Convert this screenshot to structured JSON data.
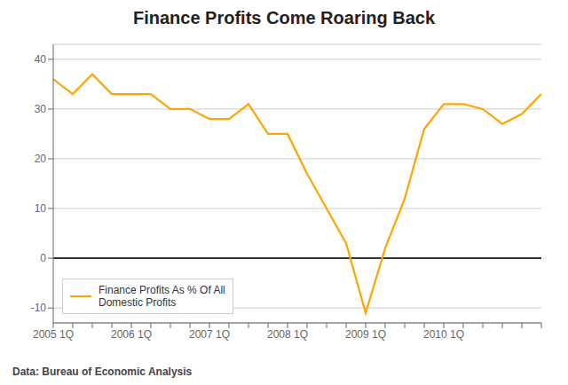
{
  "chart_data": {
    "type": "line",
    "title": "Finance Profits Come Roaring Back",
    "subtitle": "Data: Bureau of Economic Analysis",
    "categories": [
      "2005 1Q",
      null,
      null,
      null,
      "2006 1Q",
      null,
      null,
      null,
      "2007 1Q",
      null,
      null,
      null,
      "2008 1Q",
      null,
      null,
      null,
      "2009 1Q",
      null,
      null,
      null,
      "2010 1Q",
      null,
      null,
      null,
      null,
      null
    ],
    "series": [
      {
        "name": "Finance Profits As % Of All\nDomestic Profits",
        "color": "#ffa500",
        "values": [
          36,
          33,
          37,
          33,
          33,
          33,
          30,
          30,
          28,
          28,
          31,
          25,
          25,
          17,
          10,
          3,
          -11,
          2,
          12,
          26,
          31,
          31,
          30,
          27,
          29,
          33
        ]
      }
    ],
    "ylim": [
      -13,
      43
    ],
    "yticks": [
      -10,
      0,
      10,
      20,
      30,
      40
    ],
    "grid": true,
    "legend": "lower left"
  }
}
